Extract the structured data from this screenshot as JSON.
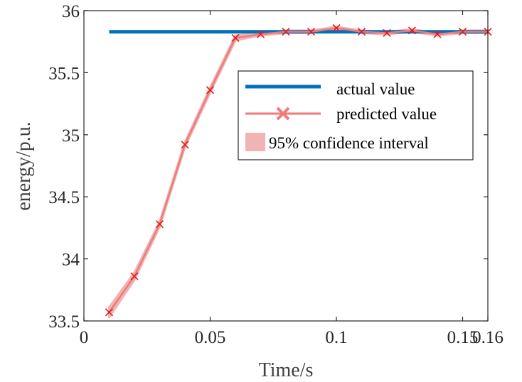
{
  "chart_data": {
    "type": "line",
    "xlabel": "Time/s",
    "ylabel": "energy/p.u.",
    "xlim": [
      0,
      0.16
    ],
    "ylim": [
      33.5,
      36
    ],
    "xticks": [
      0,
      0.05,
      0.1,
      0.15,
      0.16
    ],
    "xtick_labels": [
      "0",
      "0.05",
      "0.1",
      "0.15",
      "0.16"
    ],
    "yticks": [
      33.5,
      34,
      34.5,
      35,
      35.5,
      36
    ],
    "ytick_labels": [
      "33.5",
      "34",
      "34.5",
      "35",
      "35.5",
      "36"
    ],
    "grid": false,
    "legend_position": "top-right",
    "series": [
      {
        "name": "actual value",
        "color": "#0072bd",
        "x": [
          0.01,
          0.16
        ],
        "y": [
          35.83,
          35.83
        ]
      },
      {
        "name": "predicted value",
        "color": "#ef7a7a",
        "marker": "x",
        "marker_color": "#e31a1c",
        "x": [
          0.01,
          0.02,
          0.03,
          0.04,
          0.05,
          0.06,
          0.07,
          0.08,
          0.09,
          0.1,
          0.11,
          0.12,
          0.13,
          0.14,
          0.15,
          0.16
        ],
        "y": [
          33.57,
          33.86,
          34.28,
          34.92,
          35.36,
          35.78,
          35.81,
          35.83,
          35.83,
          35.86,
          35.83,
          35.82,
          35.84,
          35.81,
          35.83,
          35.83
        ]
      }
    ],
    "confidence_interval": {
      "name": "95% confidence interval",
      "color": "#f0b4b4",
      "x": [
        0.01,
        0.02,
        0.03,
        0.04,
        0.05,
        0.06,
        0.07,
        0.08,
        0.09,
        0.1,
        0.11,
        0.12,
        0.13,
        0.14,
        0.15,
        0.16
      ],
      "lower": [
        33.53,
        33.83,
        34.26,
        34.9,
        35.34,
        35.76,
        35.8,
        35.82,
        35.82,
        35.85,
        35.82,
        35.81,
        35.83,
        35.8,
        35.82,
        35.82
      ],
      "upper": [
        33.61,
        33.89,
        34.3,
        34.94,
        35.38,
        35.8,
        35.82,
        35.84,
        35.84,
        35.87,
        35.84,
        35.83,
        35.85,
        35.82,
        35.84,
        35.84
      ]
    },
    "legend": [
      "actual value",
      "predicted value",
      "95% confidence interval"
    ]
  }
}
